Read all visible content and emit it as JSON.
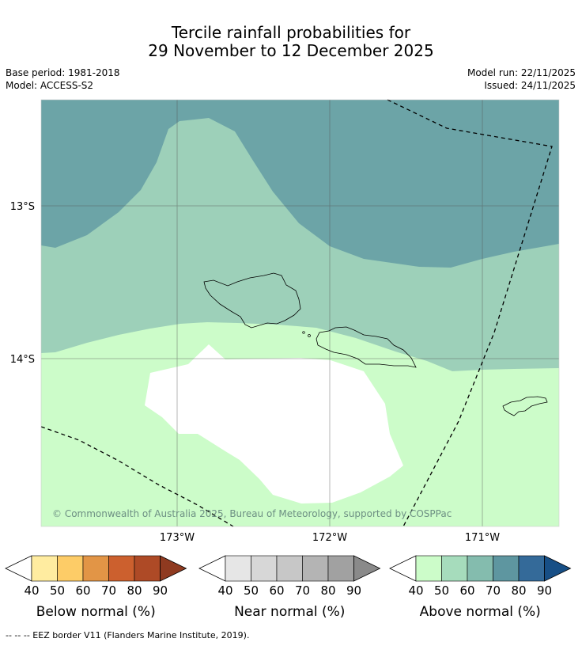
{
  "title": {
    "line1": "Tercile rainfall probabilities for",
    "line2": "29 November to 12 December 2025"
  },
  "meta": {
    "base_period": "Base period: 1981-2018",
    "model": "Model: ACCESS-S2",
    "model_run": "Model run: 22/11/2025",
    "issued": "Issued: 24/11/2025"
  },
  "map": {
    "lat_labels": [
      "13°S",
      "14°S"
    ],
    "lon_labels": [
      "173°W",
      "172°W",
      "171°W"
    ],
    "copyright": "© Commonwealth of Australia 2025, Bureau of Meteorology, supported by COSPPac",
    "colors": {
      "above_70": "#6ca4a7",
      "above_60": "#9dd0b9",
      "above_50": "#ccfcc9",
      "no_signal": "#ffffff"
    }
  },
  "legends": [
    {
      "name": "below",
      "title": "Below normal (%)",
      "ticks": [
        "40",
        "50",
        "60",
        "70",
        "80",
        "90"
      ],
      "colors": [
        "#ffeca0",
        "#fdcc67",
        "#e29546",
        "#cc602e",
        "#ae4a26",
        "#8f3a20"
      ]
    },
    {
      "name": "near",
      "title": "Near normal (%)",
      "ticks": [
        "40",
        "50",
        "60",
        "70",
        "80",
        "90"
      ],
      "colors": [
        "#e6e6e6",
        "#d7d7d7",
        "#c7c7c7",
        "#b4b4b4",
        "#a1a1a1",
        "#8a8a8a"
      ]
    },
    {
      "name": "above",
      "title": "Above normal (%)",
      "ticks": [
        "40",
        "50",
        "60",
        "70",
        "80",
        "90"
      ],
      "colors": [
        "#ccfcc9",
        "#a6dcbc",
        "#84bcae",
        "#5e96a0",
        "#346a99",
        "#174f86"
      ]
    }
  ],
  "footnote": "--  --  -- EEZ border V11 (Flanders Marine Institute, 2019)."
}
